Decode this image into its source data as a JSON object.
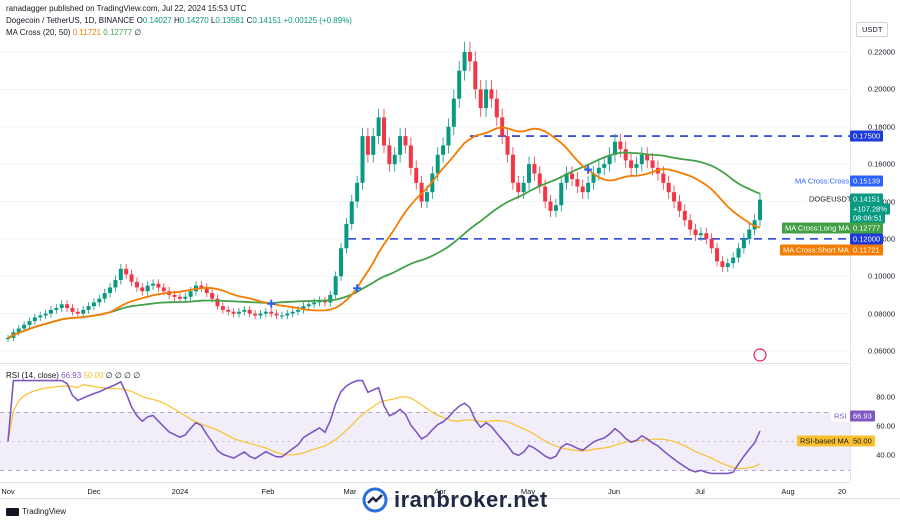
{
  "header": {
    "publisher": "ranadagger published on TradingView.com, Jul 22, 2024 15:53 UTC",
    "symbol": "Dogecoin / TetherUS, 1D, BINANCE",
    "ohlc": {
      "o_label": "O",
      "o": "0.14027",
      "h_label": "H",
      "h": "0.14270",
      "l_label": "L",
      "l": "0.13581",
      "c_label": "C",
      "c": "0.14151",
      "chg": "+0.00125 (+0.89%)"
    },
    "ma_label": "MA Cross (20, 50)",
    "ma_short": "0.11721",
    "ma_long": "0.12777",
    "ma_icon": "∅",
    "rsi_label": "RSI (14, close)",
    "rsi_val": "66.93",
    "rsi_ma": "50.00",
    "rsi_icons": "∅ ∅ ∅ ∅"
  },
  "currency": "USDT",
  "price_ticks": [
    "0.22000",
    "0.20000",
    "0.18000",
    "0.16000",
    "0.14000",
    "0.12000",
    "0.10000",
    "0.08000",
    "0.06000"
  ],
  "rsi_ticks": [
    "80.00",
    "60.00",
    "40.00"
  ],
  "x_labels": [
    "Nov",
    "Dec",
    "2024",
    "Feb",
    "Mar",
    "Apr",
    "May",
    "Jun",
    "Jul",
    "Aug",
    "20"
  ],
  "tags": {
    "resistance": "0.17500",
    "ma_cross_label": "MA Cross:Cross",
    "ma_cross_val": "0.15139",
    "symbol_tag": "DOGEUSDT",
    "symbol_price": "0.14151",
    "symbol_pct": "+107.28%",
    "countdown": "08:06:51",
    "long_label": "MA Cross:Long MA",
    "long_val": "0.12777",
    "support": "0.12000",
    "short_label": "MA Cross:Short MA",
    "short_val": "0.11721",
    "rsi_tag": "RSI",
    "rsi_tag_val": "66.93",
    "rsi_ma_tag": "RSI-based MA",
    "rsi_ma_val": "50.00"
  },
  "footer": {
    "tv_logo": "TradingView",
    "watermark": "iranbroker.net"
  },
  "colors": {
    "up": "#089981",
    "down": "#f23645",
    "short_ma": "#f57c00",
    "long_ma": "#43a047",
    "level": "#1e3ad8",
    "rsi": "#7e57c2",
    "rsi_ma": "#fbc02d",
    "cross": "#2962ff"
  },
  "chart_data": [
    {
      "type": "candlestick",
      "title": "Dogecoin / TetherUS, 1D, BINANCE",
      "x_range": [
        "Nov 2023",
        "Aug 2024"
      ],
      "ylim": [
        0.055,
        0.235
      ],
      "levels": [
        0.175,
        0.12
      ],
      "closes_approx": [
        0.067,
        0.07,
        0.072,
        0.074,
        0.076,
        0.078,
        0.079,
        0.08,
        0.082,
        0.083,
        0.085,
        0.083,
        0.081,
        0.08,
        0.082,
        0.084,
        0.086,
        0.088,
        0.091,
        0.094,
        0.098,
        0.104,
        0.101,
        0.097,
        0.094,
        0.092,
        0.095,
        0.096,
        0.094,
        0.092,
        0.09,
        0.089,
        0.088,
        0.089,
        0.092,
        0.095,
        0.094,
        0.091,
        0.088,
        0.084,
        0.082,
        0.081,
        0.08,
        0.081,
        0.082,
        0.08,
        0.079,
        0.08,
        0.081,
        0.08,
        0.079,
        0.079,
        0.08,
        0.081,
        0.082,
        0.084,
        0.085,
        0.086,
        0.087,
        0.086,
        0.09,
        0.1,
        0.115,
        0.128,
        0.14,
        0.15,
        0.175,
        0.165,
        0.175,
        0.185,
        0.17,
        0.16,
        0.165,
        0.175,
        0.17,
        0.158,
        0.15,
        0.14,
        0.145,
        0.155,
        0.165,
        0.17,
        0.18,
        0.195,
        0.21,
        0.22,
        0.215,
        0.2,
        0.19,
        0.2,
        0.195,
        0.185,
        0.175,
        0.165,
        0.15,
        0.145,
        0.15,
        0.16,
        0.155,
        0.148,
        0.14,
        0.135,
        0.138,
        0.15,
        0.155,
        0.152,
        0.148,
        0.145,
        0.15,
        0.155,
        0.158,
        0.16,
        0.165,
        0.172,
        0.168,
        0.162,
        0.158,
        0.16,
        0.165,
        0.162,
        0.158,
        0.155,
        0.15,
        0.145,
        0.14,
        0.135,
        0.13,
        0.125,
        0.122,
        0.123,
        0.12,
        0.115,
        0.108,
        0.105,
        0.107,
        0.11,
        0.115,
        0.12,
        0.125,
        0.13,
        0.141
      ],
      "short_ma_last": 0.11721,
      "long_ma_last": 0.12777,
      "ma_cross_price": 0.15139
    },
    {
      "type": "line",
      "title": "RSI (14, close)",
      "ylim": [
        20,
        95
      ],
      "bands": [
        70,
        30
      ],
      "series": [
        {
          "name": "RSI",
          "last": 66.93
        },
        {
          "name": "RSI-based MA",
          "last": 50.0
        }
      ]
    }
  ]
}
